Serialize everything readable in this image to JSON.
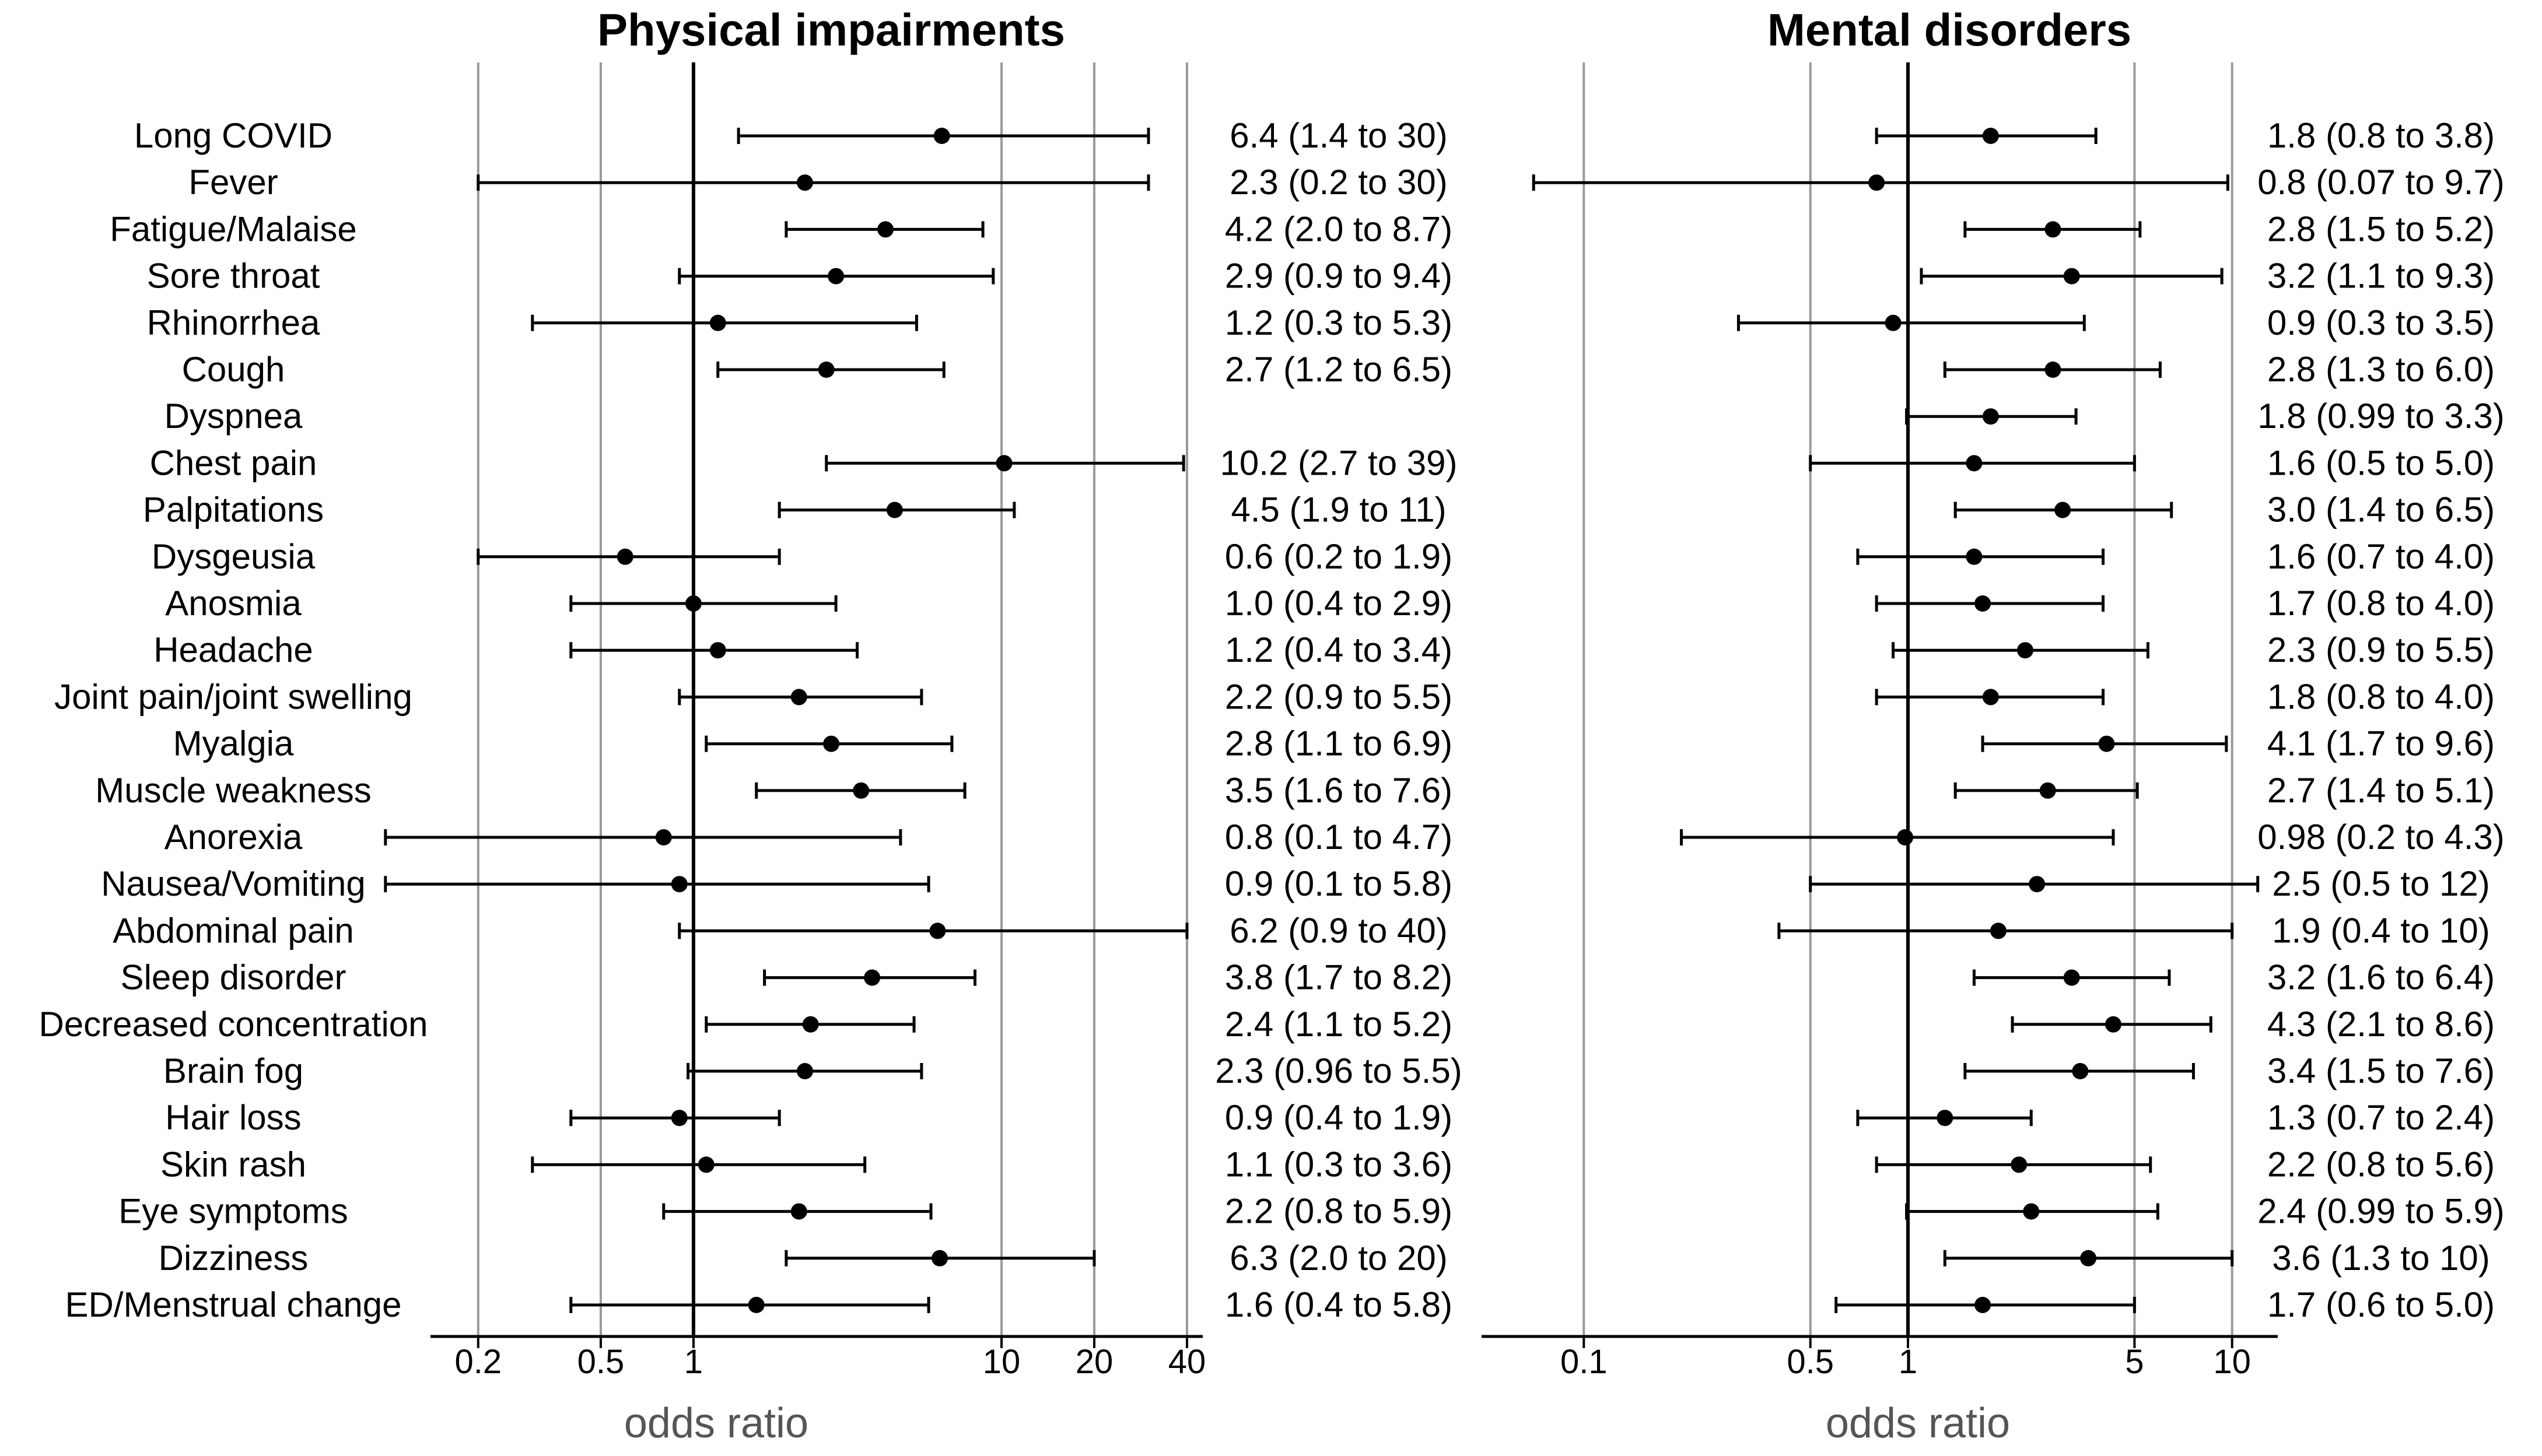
{
  "chart_data": [
    {
      "type": "forest",
      "title": "Physical impairments",
      "xlabel": "odds ratio",
      "scale": "log",
      "xlim": [
        0.14,
        45
      ],
      "ticks": [
        0.2,
        0.5,
        1,
        10,
        20,
        40
      ],
      "tick_labels": [
        "0.2",
        "0.5",
        "1",
        "10",
        "20",
        "40"
      ],
      "reference_line": 1,
      "rows": [
        {
          "label": "Long COVID",
          "or": 6.4,
          "lo": 1.4,
          "hi": 30,
          "text": "6.4 (1.4 to 30)"
        },
        {
          "label": "Fever",
          "or": 2.3,
          "lo": 0.2,
          "hi": 30,
          "text": "2.3 (0.2 to 30)"
        },
        {
          "label": "Fatigue/Malaise",
          "or": 4.2,
          "lo": 2.0,
          "hi": 8.7,
          "text": "4.2 (2.0 to 8.7)"
        },
        {
          "label": "Sore throat",
          "or": 2.9,
          "lo": 0.9,
          "hi": 9.4,
          "text": "2.9 (0.9 to 9.4)"
        },
        {
          "label": "Rhinorrhea",
          "or": 1.2,
          "lo": 0.3,
          "hi": 5.3,
          "text": "1.2 (0.3 to 5.3)"
        },
        {
          "label": "Cough",
          "or": 2.7,
          "lo": 1.2,
          "hi": 6.5,
          "text": "2.7 (1.2 to 6.5)"
        },
        {
          "label": "Dyspnea",
          "or": null,
          "lo": null,
          "hi": null,
          "text": ""
        },
        {
          "label": "Chest pain",
          "or": 10.2,
          "lo": 2.7,
          "hi": 39,
          "text": "10.2 (2.7 to 39)"
        },
        {
          "label": "Palpitations",
          "or": 4.5,
          "lo": 1.9,
          "hi": 11,
          "text": "4.5 (1.9 to 11)"
        },
        {
          "label": "Dysgeusia",
          "or": 0.6,
          "lo": 0.2,
          "hi": 1.9,
          "text": "0.6 (0.2 to 1.9)"
        },
        {
          "label": "Anosmia",
          "or": 1.0,
          "lo": 0.4,
          "hi": 2.9,
          "text": "1.0 (0.4 to 2.9)"
        },
        {
          "label": "Headache",
          "or": 1.2,
          "lo": 0.4,
          "hi": 3.4,
          "text": "1.2 (0.4 to 3.4)"
        },
        {
          "label": "Joint pain/joint swelling",
          "or": 2.2,
          "lo": 0.9,
          "hi": 5.5,
          "text": "2.2 (0.9 to 5.5)"
        },
        {
          "label": "Myalgia",
          "or": 2.8,
          "lo": 1.1,
          "hi": 6.9,
          "text": "2.8 (1.1 to 6.9)"
        },
        {
          "label": "Muscle weakness",
          "or": 3.5,
          "lo": 1.6,
          "hi": 7.6,
          "text": "3.5 (1.6 to 7.6)"
        },
        {
          "label": "Anorexia",
          "or": 0.8,
          "lo": 0.1,
          "hi": 4.7,
          "text": "0.8 (0.1 to 4.7)"
        },
        {
          "label": "Nausea/Vomiting",
          "or": 0.9,
          "lo": 0.1,
          "hi": 5.8,
          "text": "0.9 (0.1 to 5.8)"
        },
        {
          "label": "Abdominal pain",
          "or": 6.2,
          "lo": 0.9,
          "hi": 40,
          "text": "6.2 (0.9 to 40)"
        },
        {
          "label": "Sleep disorder",
          "or": 3.8,
          "lo": 1.7,
          "hi": 8.2,
          "text": "3.8 (1.7 to 8.2)"
        },
        {
          "label": "Decreased concentration",
          "or": 2.4,
          "lo": 1.1,
          "hi": 5.2,
          "text": "2.4 (1.1 to 5.2)"
        },
        {
          "label": "Brain fog",
          "or": 2.3,
          "lo": 0.96,
          "hi": 5.5,
          "text": "2.3 (0.96 to 5.5)"
        },
        {
          "label": "Hair loss",
          "or": 0.9,
          "lo": 0.4,
          "hi": 1.9,
          "text": "0.9 (0.4 to 1.9)"
        },
        {
          "label": "Skin rash",
          "or": 1.1,
          "lo": 0.3,
          "hi": 3.6,
          "text": "1.1 (0.3 to 3.6)"
        },
        {
          "label": "Eye symptoms",
          "or": 2.2,
          "lo": 0.8,
          "hi": 5.9,
          "text": "2.2 (0.8 to 5.9)"
        },
        {
          "label": "Dizziness",
          "or": 6.3,
          "lo": 2.0,
          "hi": 20,
          "text": "6.3 (2.0 to 20)"
        },
        {
          "label": "ED/Menstrual change",
          "or": 1.6,
          "lo": 0.4,
          "hi": 5.8,
          "text": "1.6 (0.4 to 5.8)"
        }
      ]
    },
    {
      "type": "forest",
      "title": "Mental disorders",
      "xlabel": "odds ratio",
      "scale": "log",
      "xlim": [
        0.05,
        13
      ],
      "ticks": [
        0.1,
        0.5,
        1,
        5,
        10
      ],
      "tick_labels": [
        "0.1",
        "0.5",
        "1",
        "5",
        "10"
      ],
      "reference_line": 1,
      "rows": [
        {
          "label": "Long COVID",
          "or": 1.8,
          "lo": 0.8,
          "hi": 3.8,
          "text": "1.8 (0.8 to 3.8)"
        },
        {
          "label": "Fever",
          "or": 0.8,
          "lo": 0.07,
          "hi": 9.7,
          "text": "0.8 (0.07 to 9.7)"
        },
        {
          "label": "Fatigue/Malaise",
          "or": 2.8,
          "lo": 1.5,
          "hi": 5.2,
          "text": "2.8 (1.5 to 5.2)"
        },
        {
          "label": "Sore throat",
          "or": 3.2,
          "lo": 1.1,
          "hi": 9.3,
          "text": "3.2 (1.1 to 9.3)"
        },
        {
          "label": "Rhinorrhea",
          "or": 0.9,
          "lo": 0.3,
          "hi": 3.5,
          "text": "0.9 (0.3 to 3.5)"
        },
        {
          "label": "Cough",
          "or": 2.8,
          "lo": 1.3,
          "hi": 6.0,
          "text": "2.8 (1.3 to 6.0)"
        },
        {
          "label": "Dyspnea",
          "or": 1.8,
          "lo": 0.99,
          "hi": 3.3,
          "text": "1.8 (0.99 to 3.3)"
        },
        {
          "label": "Chest pain",
          "or": 1.6,
          "lo": 0.5,
          "hi": 5.0,
          "text": "1.6 (0.5 to 5.0)"
        },
        {
          "label": "Palpitations",
          "or": 3.0,
          "lo": 1.4,
          "hi": 6.5,
          "text": "3.0 (1.4 to 6.5)"
        },
        {
          "label": "Dysgeusia",
          "or": 1.6,
          "lo": 0.7,
          "hi": 4.0,
          "text": "1.6 (0.7 to 4.0)"
        },
        {
          "label": "Anosmia",
          "or": 1.7,
          "lo": 0.8,
          "hi": 4.0,
          "text": "1.7 (0.8 to 4.0)"
        },
        {
          "label": "Headache",
          "or": 2.3,
          "lo": 0.9,
          "hi": 5.5,
          "text": "2.3 (0.9 to 5.5)"
        },
        {
          "label": "Joint pain/joint swelling",
          "or": 1.8,
          "lo": 0.8,
          "hi": 4.0,
          "text": "1.8 (0.8 to 4.0)"
        },
        {
          "label": "Myalgia",
          "or": 4.1,
          "lo": 1.7,
          "hi": 9.6,
          "text": "4.1 (1.7 to 9.6)"
        },
        {
          "label": "Muscle weakness",
          "or": 2.7,
          "lo": 1.4,
          "hi": 5.1,
          "text": "2.7 (1.4 to 5.1)"
        },
        {
          "label": "Anorexia",
          "or": 0.98,
          "lo": 0.2,
          "hi": 4.3,
          "text": "0.98 (0.2 to 4.3)"
        },
        {
          "label": "Nausea/Vomiting",
          "or": 2.5,
          "lo": 0.5,
          "hi": 12,
          "text": "2.5 (0.5 to 12)"
        },
        {
          "label": "Abdominal pain",
          "or": 1.9,
          "lo": 0.4,
          "hi": 10,
          "text": "1.9 (0.4 to 10)"
        },
        {
          "label": "Sleep disorder",
          "or": 3.2,
          "lo": 1.6,
          "hi": 6.4,
          "text": "3.2 (1.6 to 6.4)"
        },
        {
          "label": "Decreased concentration",
          "or": 4.3,
          "lo": 2.1,
          "hi": 8.6,
          "text": "4.3 (2.1 to 8.6)"
        },
        {
          "label": "Brain fog",
          "or": 3.4,
          "lo": 1.5,
          "hi": 7.6,
          "text": "3.4 (1.5 to 7.6)"
        },
        {
          "label": "Hair loss",
          "or": 1.3,
          "lo": 0.7,
          "hi": 2.4,
          "text": "1.3 (0.7 to 2.4)"
        },
        {
          "label": "Skin rash",
          "or": 2.2,
          "lo": 0.8,
          "hi": 5.6,
          "text": "2.2 (0.8 to 5.6)"
        },
        {
          "label": "Eye symptoms",
          "or": 2.4,
          "lo": 0.99,
          "hi": 5.9,
          "text": "2.4 (0.99 to 5.9)"
        },
        {
          "label": "Dizziness",
          "or": 3.6,
          "lo": 1.3,
          "hi": 10,
          "text": "3.6 (1.3 to 10)"
        },
        {
          "label": "ED/Menstrual change",
          "or": 1.7,
          "lo": 0.6,
          "hi": 5.0,
          "text": "1.7 (0.6 to 5.0)"
        }
      ]
    }
  ]
}
